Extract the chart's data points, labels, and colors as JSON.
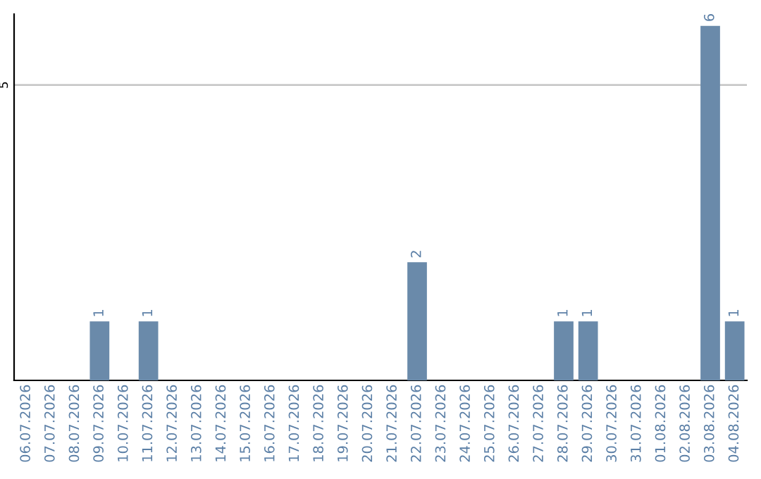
{
  "chart_data": {
    "type": "bar",
    "categories": [
      "06.07.2026",
      "07.07.2026",
      "08.07.2026",
      "09.07.2026",
      "10.07.2026",
      "11.07.2026",
      "12.07.2026",
      "13.07.2026",
      "14.07.2026",
      "15.07.2026",
      "16.07.2026",
      "17.07.2026",
      "18.07.2026",
      "19.07.2026",
      "20.07.2026",
      "21.07.2026",
      "22.07.2026",
      "23.07.2026",
      "24.07.2026",
      "25.07.2026",
      "26.07.2026",
      "27.07.2026",
      "28.07.2026",
      "29.07.2026",
      "30.07.2026",
      "31.07.2026",
      "01.08.2026",
      "02.08.2026",
      "03.08.2026",
      "04.08.2026"
    ],
    "values": [
      0,
      0,
      0,
      1,
      0,
      1,
      0,
      0,
      0,
      0,
      0,
      0,
      0,
      0,
      0,
      0,
      2,
      0,
      0,
      0,
      0,
      0,
      1,
      1,
      0,
      0,
      0,
      0,
      6,
      1
    ],
    "value_labels": [
      null,
      null,
      null,
      "1",
      null,
      "1",
      null,
      null,
      null,
      null,
      null,
      null,
      null,
      null,
      null,
      null,
      "2",
      null,
      null,
      null,
      null,
      null,
      "1",
      "1",
      null,
      null,
      null,
      null,
      "6",
      "1"
    ],
    "color": "#6a8aaa",
    "ylim": [
      0,
      6.2
    ],
    "yticks": [
      5
    ],
    "grid": "y",
    "legend": false
  }
}
